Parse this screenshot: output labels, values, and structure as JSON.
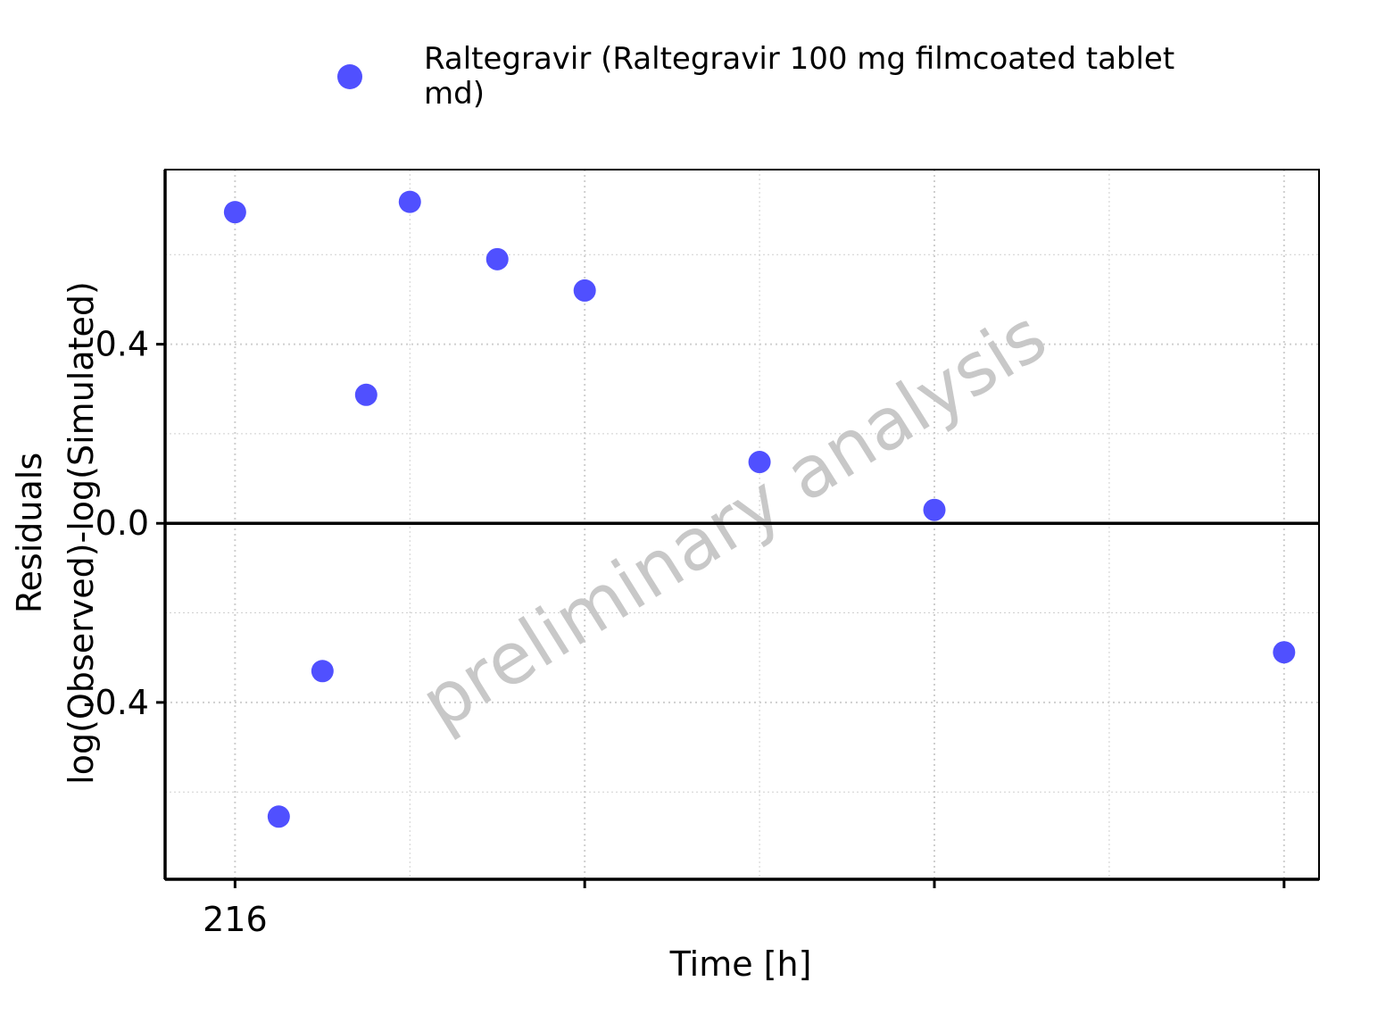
{
  "chart_data": {
    "type": "scatter",
    "title": "",
    "xlabel": "Time [h]",
    "ylabel_line1": "Residuals",
    "ylabel_line2": "log(Observed)-log(Simulated)",
    "watermark": "preliminary analysis",
    "x_tick_labels": [
      "216",
      "",
      "",
      ""
    ],
    "y_tick_labels": [
      "-0.4",
      "0.0",
      "0.4"
    ],
    "y_ticks": [
      -0.4,
      0.0,
      0.4
    ],
    "xlim": [
      215.6,
      222.2
    ],
    "ylim": [
      -0.795,
      0.79
    ],
    "x_ticks": [
      216,
      218,
      220,
      222
    ],
    "grid": true,
    "reference_line_y": 0,
    "legend_position": "top",
    "colors": {
      "series": "#5050FF",
      "grid": "#cfcfcf",
      "axis": "#000000",
      "watermark": "#c8c8c8"
    },
    "series": [
      {
        "name": "Raltegravir (Raltegravir 100 mg filmcoated tablet md)",
        "legend_line1": "Raltegravir (Raltegravir 100 mg filmcoated tablet",
        "legend_line2": "md)",
        "points": [
          {
            "x": 216.0,
            "y": 0.695
          },
          {
            "x": 216.25,
            "y": -0.655
          },
          {
            "x": 216.5,
            "y": -0.33
          },
          {
            "x": 216.75,
            "y": 0.287
          },
          {
            "x": 217.0,
            "y": 0.718
          },
          {
            "x": 217.5,
            "y": 0.59
          },
          {
            "x": 218.0,
            "y": 0.52
          },
          {
            "x": 219.0,
            "y": 0.137
          },
          {
            "x": 220.0,
            "y": 0.03
          },
          {
            "x": 222.0,
            "y": -0.288
          }
        ]
      }
    ]
  }
}
